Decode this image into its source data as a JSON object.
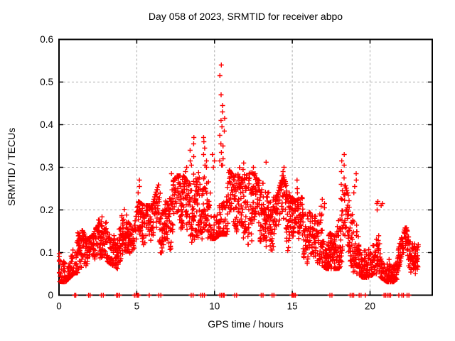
{
  "chart_data": {
    "type": "scatter",
    "title": "Day 058 of 2023, SRMTID for receiver abpo",
    "xlabel": "GPS time / hours",
    "ylabel": "SRMTID / TECUs",
    "xlim": [
      0,
      24
    ],
    "ylim": [
      0,
      0.6
    ],
    "xticks": [
      {
        "v": 0,
        "label": "0"
      },
      {
        "v": 5,
        "label": "5"
      },
      {
        "v": 10,
        "label": "10"
      },
      {
        "v": 15,
        "label": "15"
      },
      {
        "v": 20,
        "label": "20"
      }
    ],
    "yticks": [
      {
        "v": 0.0,
        "label": "0"
      },
      {
        "v": 0.1,
        "label": "0.1"
      },
      {
        "v": 0.2,
        "label": "0.2"
      },
      {
        "v": 0.3,
        "label": "0.3"
      },
      {
        "v": 0.4,
        "label": "0.4"
      },
      {
        "v": 0.5,
        "label": "0.5"
      },
      {
        "v": 0.6,
        "label": "0.6"
      }
    ],
    "grid": true,
    "legend": "none",
    "marker": {
      "shape": "plus",
      "size": 7,
      "color": "#ff0000"
    },
    "colors": {
      "grid": "#aaaaaa",
      "border": "#000000",
      "text": "#000000",
      "background": "#ffffff"
    },
    "t_end": 23.1,
    "epoch_step": 0.045,
    "sats_min": 3,
    "sats_max": 7,
    "seed": 58,
    "envelope": [
      [
        0.0,
        0.03,
        0.13
      ],
      [
        0.4,
        0.03,
        0.1
      ],
      [
        0.7,
        0.04,
        0.15
      ],
      [
        1.0,
        0.05,
        0.19
      ],
      [
        1.4,
        0.05,
        0.16
      ],
      [
        1.8,
        0.04,
        0.13
      ],
      [
        2.2,
        0.05,
        0.14
      ],
      [
        2.6,
        0.07,
        0.18
      ],
      [
        3.0,
        0.08,
        0.19
      ],
      [
        3.4,
        0.07,
        0.16
      ],
      [
        3.8,
        0.06,
        0.16
      ],
      [
        4.1,
        0.08,
        0.21
      ],
      [
        4.5,
        0.07,
        0.17
      ],
      [
        4.8,
        0.06,
        0.15
      ],
      [
        5.1,
        0.08,
        0.22
      ],
      [
        5.5,
        0.09,
        0.21
      ],
      [
        6.0,
        0.08,
        0.21
      ],
      [
        6.4,
        0.1,
        0.26
      ],
      [
        6.8,
        0.09,
        0.21
      ],
      [
        7.2,
        0.1,
        0.26
      ],
      [
        7.6,
        0.11,
        0.28
      ],
      [
        8.0,
        0.11,
        0.28
      ],
      [
        8.4,
        0.12,
        0.26
      ],
      [
        8.8,
        0.12,
        0.3
      ],
      [
        9.2,
        0.13,
        0.28
      ],
      [
        9.6,
        0.13,
        0.31
      ],
      [
        10.0,
        0.13,
        0.29
      ],
      [
        10.4,
        0.14,
        0.31
      ],
      [
        10.8,
        0.14,
        0.3
      ],
      [
        11.2,
        0.12,
        0.28
      ],
      [
        11.6,
        0.12,
        0.3
      ],
      [
        12.0,
        0.12,
        0.28
      ],
      [
        12.4,
        0.11,
        0.29
      ],
      [
        12.8,
        0.11,
        0.27
      ],
      [
        13.2,
        0.1,
        0.26
      ],
      [
        13.6,
        0.09,
        0.23
      ],
      [
        14.0,
        0.09,
        0.23
      ],
      [
        14.4,
        0.1,
        0.28
      ],
      [
        14.8,
        0.09,
        0.24
      ],
      [
        15.2,
        0.08,
        0.22
      ],
      [
        15.6,
        0.08,
        0.23
      ],
      [
        16.0,
        0.07,
        0.2
      ],
      [
        16.4,
        0.06,
        0.18
      ],
      [
        16.8,
        0.07,
        0.21
      ],
      [
        17.2,
        0.06,
        0.2
      ],
      [
        17.6,
        0.06,
        0.18
      ],
      [
        18.0,
        0.06,
        0.22
      ],
      [
        18.3,
        0.07,
        0.27
      ],
      [
        18.7,
        0.05,
        0.22
      ],
      [
        19.1,
        0.05,
        0.19
      ],
      [
        19.5,
        0.04,
        0.15
      ],
      [
        19.9,
        0.04,
        0.13
      ],
      [
        20.3,
        0.05,
        0.17
      ],
      [
        20.7,
        0.04,
        0.14
      ],
      [
        21.1,
        0.03,
        0.11
      ],
      [
        21.5,
        0.03,
        0.1
      ],
      [
        21.9,
        0.04,
        0.12
      ],
      [
        22.3,
        0.06,
        0.16
      ],
      [
        22.7,
        0.04,
        0.12
      ],
      [
        23.1,
        0.05,
        0.13
      ]
    ],
    "spikes": [
      {
        "t": 5.15,
        "dt": 0.1,
        "values": [
          0.27,
          0.255,
          0.24
        ]
      },
      {
        "t": 7.3,
        "dt": 0.08,
        "values": [
          0.285,
          0.27
        ]
      },
      {
        "t": 8.15,
        "dt": 0.08,
        "values": [
          0.3,
          0.29
        ]
      },
      {
        "t": 8.55,
        "dt": 0.15,
        "values": [
          0.37,
          0.355,
          0.34,
          0.325,
          0.315,
          0.305
        ]
      },
      {
        "t": 9.35,
        "dt": 0.15,
        "values": [
          0.37,
          0.36,
          0.345,
          0.33,
          0.315,
          0.305,
          0.3
        ]
      },
      {
        "t": 9.9,
        "dt": 0.1,
        "values": [
          0.33,
          0.315,
          0.3
        ]
      },
      {
        "t": 10.42,
        "dt": 0.1,
        "values": [
          0.54,
          0.515,
          0.47,
          0.43,
          0.41,
          0.395,
          0.375,
          0.355,
          0.335,
          0.315,
          0.305
        ]
      },
      {
        "t": 10.58,
        "dt": 0.08,
        "values": [
          0.445,
          0.415,
          0.385,
          0.35,
          0.32,
          0.305
        ]
      },
      {
        "t": 11.9,
        "dt": 0.08,
        "values": [
          0.31,
          0.295
        ]
      },
      {
        "t": 12.55,
        "dt": 0.08,
        "values": [
          0.3,
          0.285
        ]
      },
      {
        "t": 13.35,
        "dt": 0.05,
        "values": [
          0.312
        ]
      },
      {
        "t": 14.45,
        "dt": 0.12,
        "values": [
          0.3,
          0.29,
          0.28,
          0.27,
          0.26
        ]
      },
      {
        "t": 15.35,
        "dt": 0.06,
        "values": [
          0.27,
          0.25,
          0.24
        ]
      },
      {
        "t": 17.0,
        "dt": 0.1,
        "values": [
          0.225,
          0.215,
          0.205
        ]
      },
      {
        "t": 18.25,
        "dt": 0.1,
        "values": [
          0.33,
          0.315,
          0.305,
          0.29,
          0.275,
          0.26,
          0.245
        ]
      },
      {
        "t": 19.05,
        "dt": 0.1,
        "values": [
          0.285,
          0.27,
          0.255,
          0.24
        ]
      },
      {
        "t": 20.45,
        "dt": 0.06,
        "values": [
          0.22,
          0.215,
          0.2
        ]
      },
      {
        "t": 20.75,
        "dt": 0.05,
        "values": [
          0.215,
          0.21
        ]
      }
    ],
    "zeros": [
      1.0,
      1.08,
      1.9,
      2.0,
      2.72,
      2.85,
      3.7,
      3.78,
      3.9,
      4.85,
      4.95,
      5.05,
      5.12,
      5.8,
      6.42,
      6.55,
      8.5,
      8.62,
      9.12,
      9.22,
      9.35,
      10.35,
      10.45,
      10.55,
      10.62,
      11.3,
      11.42,
      13.0,
      13.12,
      13.7,
      13.82,
      14.98,
      15.05,
      15.12,
      15.2,
      17.42,
      17.55,
      18.72,
      18.85,
      18.95,
      19.3,
      19.42,
      19.7,
      20.9,
      21.0,
      21.1,
      21.22,
      21.32,
      21.85,
      22.05,
      22.15,
      22.38,
      22.5
    ]
  }
}
